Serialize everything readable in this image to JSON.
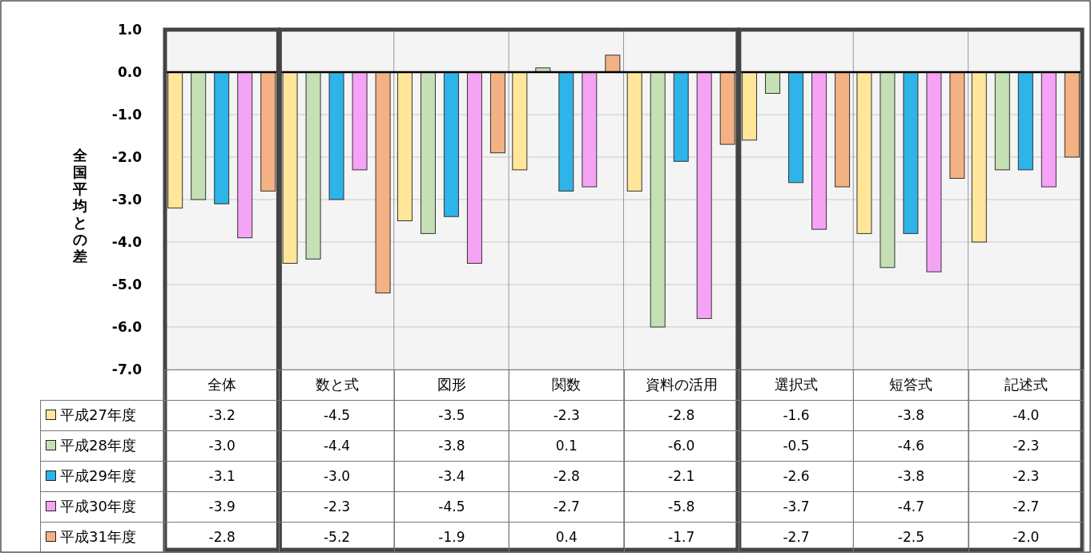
{
  "chart_data": {
    "type": "bar",
    "ylabel": "全国平均との差",
    "categories": [
      "全体",
      "数と式",
      "図形",
      "関数",
      "資料の活用",
      "選択式",
      "短答式",
      "記述式"
    ],
    "series": [
      {
        "name": "平成27年度",
        "color": "#ffe699",
        "values": [
          -3.2,
          -4.5,
          -3.5,
          -2.3,
          -2.8,
          -1.6,
          -3.8,
          -4.0
        ],
        "value_labels": [
          "-3.2",
          "-4.5",
          "-3.5",
          "-2.3",
          "-2.8",
          "-1.6",
          "-3.8",
          "-4.0"
        ]
      },
      {
        "name": "平成28年度",
        "color": "#c5e0b4",
        "values": [
          -3.0,
          -4.4,
          -3.8,
          0.1,
          -6.0,
          -0.5,
          -4.6,
          -2.3
        ],
        "value_labels": [
          "-3.0",
          "-4.4",
          "-3.8",
          "0.1",
          "-6.0",
          "-0.5",
          "-4.6",
          "-2.3"
        ]
      },
      {
        "name": "平成29年度",
        "color": "#2eb4e8",
        "values": [
          -3.1,
          -3.0,
          -3.4,
          -2.8,
          -2.1,
          -2.6,
          -3.8,
          -2.3
        ],
        "value_labels": [
          "-3.1",
          "-3.0",
          "-3.4",
          "-2.8",
          "-2.1",
          "-2.6",
          "-3.8",
          "-2.3"
        ]
      },
      {
        "name": "平成30年度",
        "color": "#f5a3f5",
        "values": [
          -3.9,
          -2.3,
          -4.5,
          -2.7,
          -5.8,
          -3.7,
          -4.7,
          -2.7
        ],
        "value_labels": [
          "-3.9",
          "-2.3",
          "-4.5",
          "-2.7",
          "-5.8",
          "-3.7",
          "-4.7",
          "-2.7"
        ]
      },
      {
        "name": "平成31年度",
        "color": "#f4b183",
        "values": [
          -2.8,
          -5.2,
          -1.9,
          0.4,
          -1.7,
          -2.7,
          -2.5,
          -2.0
        ],
        "value_labels": [
          "-2.8",
          "-5.2",
          "-1.9",
          "0.4",
          "-1.7",
          "-2.7",
          "-2.5",
          "-2.0"
        ]
      }
    ],
    "ylim": [
      -7,
      1
    ],
    "yticks": [
      {
        "value": 1,
        "label": "1.0"
      },
      {
        "value": 0,
        "label": "0.0"
      },
      {
        "value": -1,
        "label": "-1.0"
      },
      {
        "value": -2,
        "label": "-2.0"
      },
      {
        "value": -3,
        "label": "-3.0"
      },
      {
        "value": -4,
        "label": "-4.0"
      },
      {
        "value": -5,
        "label": "-5.0"
      },
      {
        "value": -6,
        "label": "-6.0"
      },
      {
        "value": -7,
        "label": "-7.0"
      }
    ],
    "grid": "y",
    "legend": "bottom"
  }
}
